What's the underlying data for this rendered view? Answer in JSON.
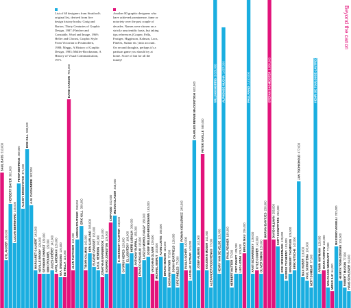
{
  "notes": [
    "List of 68 designers from Stratford's original list, derived from five design history books: Craig and Barton, Thirty Centuries of Graphic Design, 1987; Fletcher and Constable, Word and Image, 1969; Heller and Chwast, Graphic Style: From Victorian to Postmodern, 1988; Meggs, A History of Graphic Design, 1983; Müller-Brockmann, A History of Visual Communication, 1971.",
    "Another 80 graphic designers who have achieved prominence, fame or notoriety over the past couple of decades. Names were chosen on a strictly unscientific basis, but taking tips references (Cooper, Fella, Frutiger, Higginson, Kalman, Loos, Pineles, Sutnar etc.) into account. On second thoughts, perhaps it's a partisan game you should try at home. Score of fun for all the family!"
  ],
  "chart_data": {
    "type": "bar",
    "title": "Beyond the canon",
    "ylim": [
      0,
      1160000
    ],
    "categories": [
      "SAUL BASS",
      "OTL AICHER",
      "HERBERT BAYER",
      "LUCIAN BERNHARD",
      "PETER BEHRENS",
      "ALEXEY BRODOVITCH",
      "BOB GILL",
      "A.M. CASSANDRE",
      "MARGARET CALVERT",
      "NEVILLE BRODY",
      "SEYMOUR CHWAST",
      "WIM CROUWEL",
      "JULES CHÉRET",
      "APRIL GREIMAN",
      "W.A. DWIGGINS",
      "ED FELLA",
      "DAVID CARSON",
      "ALAN FLETCHER",
      "ADRIAN FRUTIGER",
      "ERIC GILL",
      "TIBOR KALMAN",
      "KEN GARLAND",
      "EUGENE GRASSET",
      "F.H.K. HENRION",
      "JONATHAN BARNBROOK",
      "EDWARD JOHNSTON",
      "CHIP KIDD",
      "MILTON GLASER",
      "E. MCKNIGHT KAUFFER",
      "GYORGY KEPES",
      "EL LISSITZKY",
      "HERB LUBALIN",
      "ANTHONY BURRILL",
      "FRANCO GRIGNANI",
      "LASZLO MOHOLY-NAGY",
      "JOSEF MÜLLER-BROCKMANN",
      "VAUGHAN OLIVER",
      "MICHAEL BIERUT",
      "ALVIN LUSTIG",
      "BRUNO MUNARI",
      "GIOVANNI PINTORI",
      "JOHN HEARTFIELD",
      "CIPE PINELES",
      "ROMAN CIESLEWICZ",
      "PAULA SCHER",
      "LADISLAV SUTNAR",
      "CHARLES RENNIE MACKINTOSH",
      "JOSEF ALBERS",
      "PETER SAVILLE",
      "KOLOMAN MOSER",
      "ALEXANDER RODCHENKO",
      "WILLIAM MORRIS",
      "HENRY VAN DE VELDE",
      "ALPHONSE MUCHA",
      "PAUL RENNER",
      "HERBERT MATTER",
      "PIET ZWART",
      "LEO LIONNI",
      "BRUCE MAU",
      "PAUL RAND",
      "XANTI SCHAWINSKY",
      "KYLE COOPER",
      "OLIVER SIMON",
      "MARIAN BANTJES",
      "STEFAN SAGMEISTER",
      "DAVID HILLMAN",
      "KURT SCHWITTERS",
      "ERIK SPIEKERMANN",
      "GEORGE TSCHERNY",
      "BRADBURY THOMPSON",
      "ERIK NITSCHE",
      "JAN TSCHICHOLD",
      "MAX HUBER",
      "PAUL SCHUITEMA",
      "GERT DUMBAR",
      "HENRI DE TOULOUSE-LAUTREC",
      "ARMIN HOFMANN",
      "MARK FARROW",
      "WOLFGANG WEINGART",
      "MIRKO ILIC",
      "MASSIMO VIGNELLI",
      "HENRYK TOMASZEWSKI",
      "ROBERT MASSIN",
      "HANS SCHLEGER"
    ],
    "values": [
      510000,
      180000,
      392000,
      245000,
      469000,
      374000,
      598000,
      387000,
      142000,
      129000,
      129000,
      129000,
      142000,
      129000,
      116000,
      116000,
      786000,
      142000,
      258000,
      309000,
      142000,
      206000,
      155000,
      142000,
      116000,
      129000,
      322000,
      348000,
      168000,
      129000,
      168000,
      206000,
      155000,
      116000,
      180000,
      193000,
      129000,
      103000,
      193000,
      116000,
      77000,
      129000,
      77000,
      245000,
      142000,
      103000,
      632000,
      142000,
      580000,
      142000,
      77000,
      3620000,
      129000,
      1057000,
      180000,
      77000,
      129000,
      129000,
      206000,
      2410000,
      129000,
      142000,
      129000,
      258000,
      1980000,
      258000,
      232000,
      129000,
      103000,
      129000,
      142000,
      477000,
      116000,
      103000,
      77000,
      941000,
      129000,
      142000,
      77000,
      64000,
      232000,
      103000,
      77000,
      64000
    ],
    "value_labels": [
      "510,000",
      "180,000",
      "392,000",
      "245,000",
      "469,000",
      "374,000",
      "598,000",
      "387,000",
      "142,000",
      "129,000",
      "129,000",
      "129,000",
      "142,000",
      "129,000",
      "116,000",
      "116,000",
      "786,000",
      "142,000",
      "258,000",
      "309,000",
      "142,000",
      "206,000",
      "155,000",
      "142,000",
      "116,000",
      "129,000",
      "322,000",
      "348,000",
      "168,000",
      "129,000",
      "168,000",
      "206,000",
      "155,000",
      "116,000",
      "180,000",
      "193,000",
      "129,000",
      "103,000",
      "193,000",
      "116,000",
      "77,000",
      "129,000",
      "77,000",
      "245,000",
      "142,000",
      "103,000",
      "632,000",
      "142,000",
      "580,000",
      "142,000",
      "77,000",
      "3,620,000",
      "129,000",
      "1,057,000",
      "180,000",
      "77,000",
      "129,000",
      "129,000",
      "206,000",
      "2,410,000",
      "129,000",
      "142,000",
      "129,000",
      "258,000",
      "1,980,000",
      "258,000",
      "232,000",
      "129,000",
      "103,000",
      "129,000",
      "142,000",
      "477,000",
      "116,000",
      "103,000",
      "77,000",
      "941,000",
      "129,000",
      "142,000",
      "77,000",
      "64,000",
      "232,000",
      "103,000",
      "77,000",
      "64,000"
    ],
    "colors": [
      "#e2137b",
      "#1aaee0",
      "#1aaee0",
      "#1aaee0",
      "#1aaee0",
      "#1aaee0",
      "#1aaee0",
      "#1aaee0",
      "#1aaee0",
      "#e2137b",
      "#1aaee0",
      "#1aaee0",
      "#1aaee0",
      "#e2137b",
      "#1aaee0",
      "#e2137b",
      "#e2137b",
      "#e2137b",
      "#1aaee0",
      "#1aaee0",
      "#e2137b",
      "#1aaee0",
      "#1aaee0",
      "#1aaee0",
      "#e2137b",
      "#1aaee0",
      "#e2137b",
      "#1aaee0",
      "#1aaee0",
      "#1aaee0",
      "#1aaee0",
      "#1aaee0",
      "#e2137b",
      "#1aaee0",
      "#1aaee0",
      "#1aaee0",
      "#e2137b",
      "#e2137b",
      "#1aaee0",
      "#1aaee0",
      "#1aaee0",
      "#1aaee0",
      "#1aaee0",
      "#1aaee0",
      "#e2137b",
      "#1aaee0",
      "#1aaee0",
      "#1aaee0",
      "#e2137b",
      "#1aaee0",
      "#1aaee0",
      "#1aaee0",
      "#1aaee0",
      "#1aaee0",
      "#1aaee0",
      "#1aaee0",
      "#1aaee0",
      "#1aaee0",
      "#e2137b",
      "#1aaee0",
      "#1aaee0",
      "#e2137b",
      "#1aaee0",
      "#e2137b",
      "#e2137b",
      "#e2137b",
      "#1aaee0",
      "#1aaee0",
      "#1aaee0",
      "#1aaee0",
      "#1aaee0",
      "#1aaee0",
      "#1aaee0",
      "#1aaee0",
      "#1aaee0",
      "#1aaee0",
      "#1aaee0",
      "#e2137b",
      "#1aaee0",
      "#e2137b",
      "#1aaee0",
      "#1aaee0",
      "#1aaee0",
      "#1aaee0"
    ],
    "legend_colors": [
      "#1aaee0",
      "#e2137b"
    ]
  }
}
